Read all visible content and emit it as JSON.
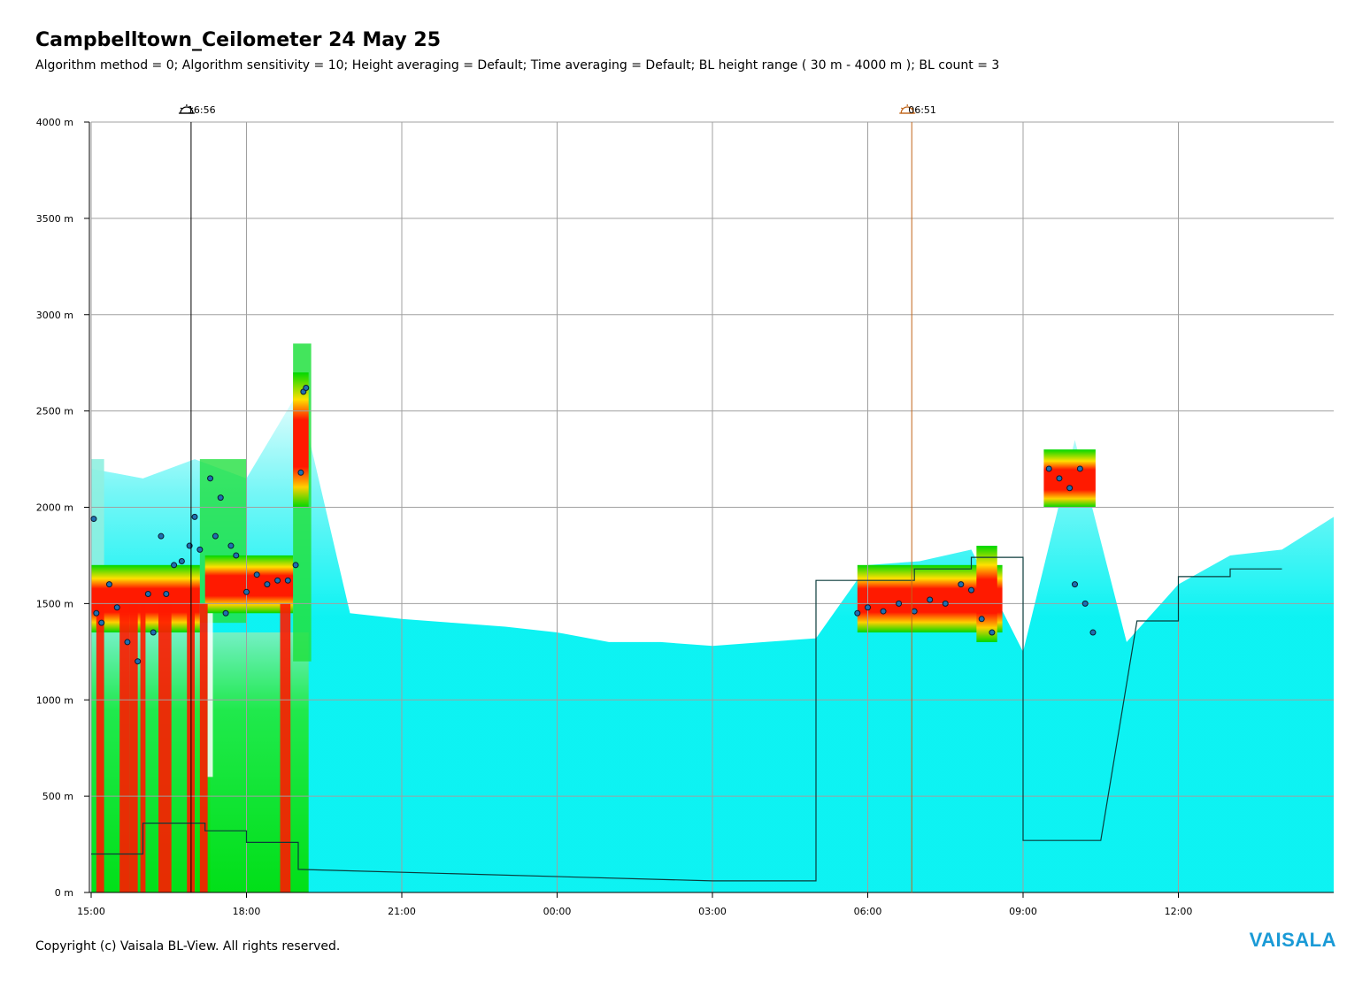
{
  "header": {
    "title": "Campbelltown_Ceilometer 24 May 25",
    "subtitle": "Algorithm method = 0; Algorithm sensitivity = 10; Height averaging = Default; Time averaging = Default; BL height range ( 30 m - 4000 m ); BL count = 3"
  },
  "footer": {
    "copyright": "Copyright (c) Vaisala BL-View. All rights reserved.",
    "brand": "VAISALA"
  },
  "colors": {
    "backscatter_low": "#00f0f0",
    "backscatter_mid": "#00e000",
    "backscatter_high": "#ff1a00",
    "cloud_marker": "#1f6fb0",
    "bl_line": "#0b3b3b",
    "sunset_line": "#000000",
    "sunrise_line": "#c0651a",
    "brand": "#1a9ad6"
  },
  "chart_data": {
    "type": "heatmap",
    "x_unit": "hours since 15:00 on 24 May 25",
    "x_ticks": [
      "15:00",
      "18:00",
      "21:00",
      "00:00",
      "03:00",
      "06:00",
      "09:00",
      "12:00"
    ],
    "x_tick_hours": [
      0,
      3,
      6,
      9,
      12,
      15,
      18,
      21
    ],
    "xlim_hours": [
      0,
      24
    ],
    "y_ticks": [
      "0 m",
      "500 m",
      "1000 m",
      "1500 m",
      "2000 m",
      "2500 m",
      "3000 m",
      "3500 m",
      "4000 m"
    ],
    "y_tick_values": [
      0,
      500,
      1000,
      1500,
      2000,
      2500,
      3000,
      3500,
      4000
    ],
    "ylim": [
      0,
      4000
    ],
    "grid": true,
    "events": [
      {
        "name": "sunset",
        "label": "16:56",
        "hours": 1.93,
        "icon": "sunset-icon"
      },
      {
        "name": "sunrise",
        "label": "06:51",
        "hours": 15.85,
        "icon": "sunrise-icon"
      }
    ],
    "bl_height_steps": [
      [
        0,
        200
      ],
      [
        1.0,
        200
      ],
      [
        1.0,
        360
      ],
      [
        2.2,
        360
      ],
      [
        2.2,
        320
      ],
      [
        3.0,
        320
      ],
      [
        3.0,
        260
      ],
      [
        4.0,
        260
      ],
      [
        4.0,
        120
      ],
      [
        12.0,
        60
      ],
      [
        14.0,
        60
      ],
      [
        14.0,
        80
      ],
      [
        14.0,
        80
      ],
      [
        14.0,
        1620
      ],
      [
        15.9,
        1620
      ],
      [
        15.9,
        1680
      ],
      [
        17.0,
        1680
      ],
      [
        17.0,
        1740
      ],
      [
        17.0,
        1740
      ],
      [
        18.0,
        1740
      ],
      [
        18.0,
        270
      ],
      [
        19.5,
        270
      ],
      [
        20.2,
        1410
      ],
      [
        21.0,
        1410
      ],
      [
        21.0,
        1640
      ],
      [
        22.0,
        1640
      ],
      [
        22.0,
        1680
      ],
      [
        23.0,
        1680
      ]
    ],
    "cloud_base_series": [
      [
        0.05,
        1940
      ],
      [
        0.1,
        1450
      ],
      [
        0.2,
        1400
      ],
      [
        0.35,
        1600
      ],
      [
        0.5,
        1480
      ],
      [
        0.7,
        1300
      ],
      [
        0.9,
        1200
      ],
      [
        1.1,
        1550
      ],
      [
        1.2,
        1350
      ],
      [
        1.35,
        1850
      ],
      [
        1.45,
        1550
      ],
      [
        1.6,
        1700
      ],
      [
        1.75,
        1720
      ],
      [
        1.9,
        1800
      ],
      [
        2.0,
        1950
      ],
      [
        2.1,
        1780
      ],
      [
        2.3,
        2150
      ],
      [
        2.4,
        1850
      ],
      [
        2.5,
        2050
      ],
      [
        2.6,
        1450
      ],
      [
        2.7,
        1800
      ],
      [
        2.8,
        1750
      ],
      [
        3.0,
        1560
      ],
      [
        3.2,
        1650
      ],
      [
        3.4,
        1600
      ],
      [
        3.6,
        1620
      ],
      [
        3.8,
        1620
      ],
      [
        3.95,
        1700
      ],
      [
        4.05,
        2180
      ],
      [
        4.1,
        2600
      ],
      [
        4.15,
        2620
      ],
      [
        14.8,
        1450
      ],
      [
        15.0,
        1480
      ],
      [
        15.3,
        1460
      ],
      [
        15.6,
        1500
      ],
      [
        15.9,
        1460
      ],
      [
        16.2,
        1520
      ],
      [
        16.5,
        1500
      ],
      [
        16.8,
        1600
      ],
      [
        17.0,
        1570
      ],
      [
        17.2,
        1420
      ],
      [
        17.4,
        1350
      ],
      [
        18.5,
        2200
      ],
      [
        18.7,
        2150
      ],
      [
        18.9,
        2100
      ],
      [
        19.1,
        2200
      ],
      [
        19.0,
        1600
      ],
      [
        19.2,
        1500
      ],
      [
        19.35,
        1350
      ]
    ],
    "x": [
      0,
      1,
      2,
      3,
      4,
      5,
      6,
      7,
      8,
      9,
      10,
      11,
      12,
      13,
      14,
      15,
      16,
      17,
      18,
      19,
      20,
      21,
      22,
      23,
      24
    ],
    "backscatter_top_m": [
      2200,
      2150,
      2250,
      2150,
      2600,
      1450,
      1420,
      1400,
      1380,
      1350,
      1300,
      1300,
      1280,
      1300,
      1320,
      1700,
      1720,
      1780,
      1250,
      2350,
      1300,
      1600,
      1750,
      1780,
      1950
    ]
  }
}
